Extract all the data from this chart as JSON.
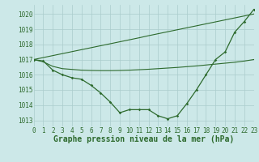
{
  "background_color": "#cce8e8",
  "grid_color": "#aacccc",
  "line_color": "#2d6a2d",
  "xlabel": "Graphe pression niveau de la mer (hPa)",
  "xlabel_fontsize": 7,
  "tick_fontsize": 5.5,
  "xlim": [
    0,
    23
  ],
  "ylim": [
    1012.6,
    1020.6
  ],
  "yticks": [
    1013,
    1014,
    1015,
    1016,
    1017,
    1018,
    1019,
    1020
  ],
  "xticks": [
    0,
    1,
    2,
    3,
    4,
    5,
    6,
    7,
    8,
    9,
    10,
    11,
    12,
    13,
    14,
    15,
    16,
    17,
    18,
    19,
    20,
    21,
    22,
    23
  ],
  "hours": [
    0,
    1,
    2,
    3,
    4,
    5,
    6,
    7,
    8,
    9,
    10,
    11,
    12,
    13,
    14,
    15,
    16,
    17,
    18,
    19,
    20,
    21,
    22,
    23
  ],
  "pressure_main": [
    1017.0,
    1016.9,
    1016.3,
    1016.0,
    1015.8,
    1015.7,
    1015.3,
    1014.8,
    1014.2,
    1013.5,
    1013.7,
    1013.7,
    1013.7,
    1013.3,
    1013.1,
    1013.3,
    1014.1,
    1015.0,
    1016.0,
    1017.0,
    1017.5,
    1018.8,
    1019.5,
    1020.3
  ],
  "pressure_line_straight": [
    1017.0,
    1017.13,
    1017.26,
    1017.39,
    1017.52,
    1017.65,
    1017.78,
    1017.91,
    1018.04,
    1018.17,
    1018.3,
    1018.43,
    1018.57,
    1018.7,
    1018.83,
    1018.96,
    1019.09,
    1019.22,
    1019.35,
    1019.48,
    1019.61,
    1019.74,
    1019.87,
    1020.0
  ],
  "pressure_line_mid": [
    1017.0,
    1016.85,
    1016.55,
    1016.4,
    1016.35,
    1016.3,
    1016.28,
    1016.27,
    1016.27,
    1016.28,
    1016.3,
    1016.33,
    1016.36,
    1016.4,
    1016.44,
    1016.48,
    1016.53,
    1016.58,
    1016.64,
    1016.7,
    1016.76,
    1016.82,
    1016.9,
    1017.0
  ]
}
